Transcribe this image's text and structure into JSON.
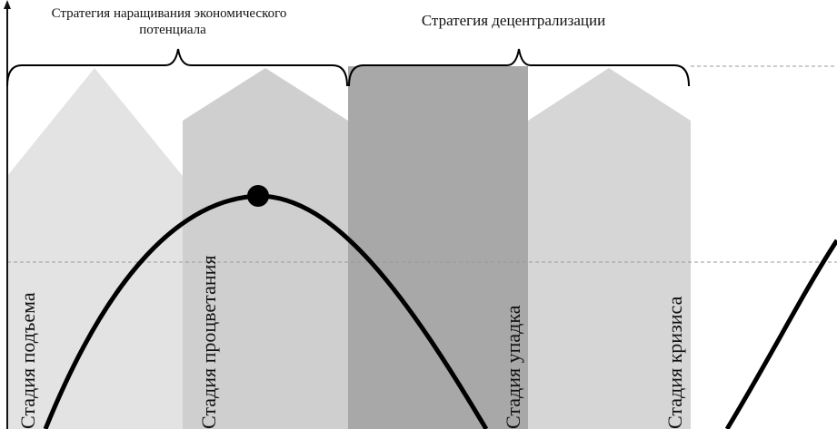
{
  "strategies": {
    "growth": {
      "line1": "Стратегия наращивания экономического",
      "line2": "потенциала"
    },
    "decentralization": {
      "label": "Стратегия децентрализации"
    }
  },
  "stages": [
    {
      "label": "Стадия подъема",
      "color": "#e3e3e3"
    },
    {
      "label": "Стадия процветания",
      "color": "#cfcfcf"
    },
    {
      "label": "Стадия упадка",
      "color": "#a8a8a8"
    },
    {
      "label": "Стадия кризиса",
      "color": "#d6d6d6"
    }
  ],
  "colors": {
    "curve": "#000000",
    "axis": "#111111",
    "dashed": "#999999"
  }
}
